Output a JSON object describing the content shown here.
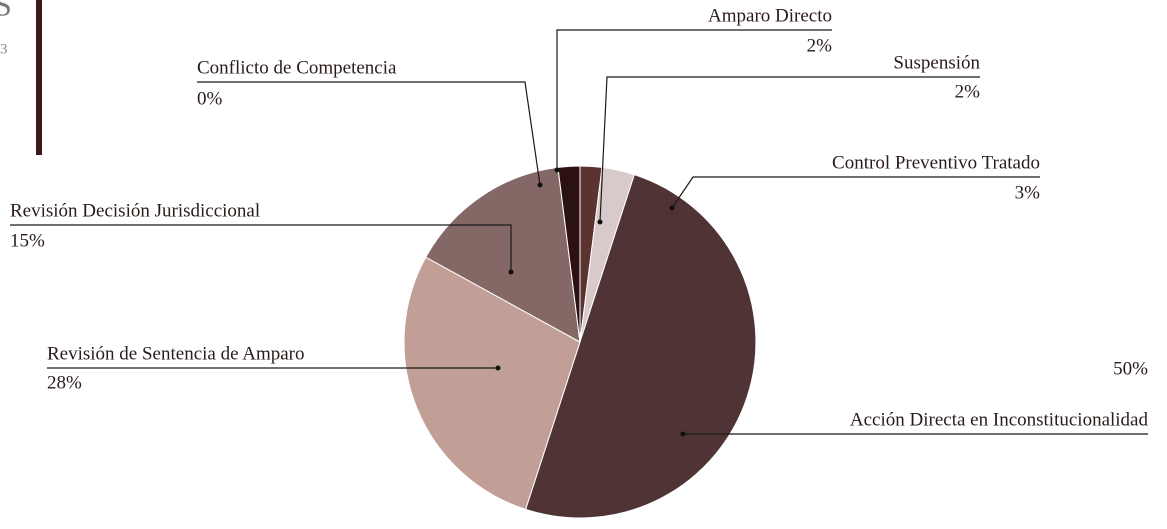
{
  "header": {
    "fragments": [
      "S",
      "3"
    ]
  },
  "chart_data": {
    "type": "pie",
    "categories": [
      "Suspensión",
      "Control Preventivo Tratado",
      "Acción Directa en Inconstitucionalidad",
      "Revisión de Sentencia de Amparo",
      "Revisión Decisión Jurisdiccional",
      "Conflicto de Competencia",
      "Amparo Directo"
    ],
    "values": [
      2,
      3,
      50,
      28,
      15,
      0,
      2
    ],
    "value_labels": [
      "2%",
      "3%",
      "50%",
      "28%",
      "15%",
      "0%",
      "2%"
    ],
    "colors": [
      "#5b3431",
      "#d8cacb",
      "#503435",
      "#c19f96",
      "#846865",
      "#ffffff",
      "#2b1111"
    ]
  }
}
